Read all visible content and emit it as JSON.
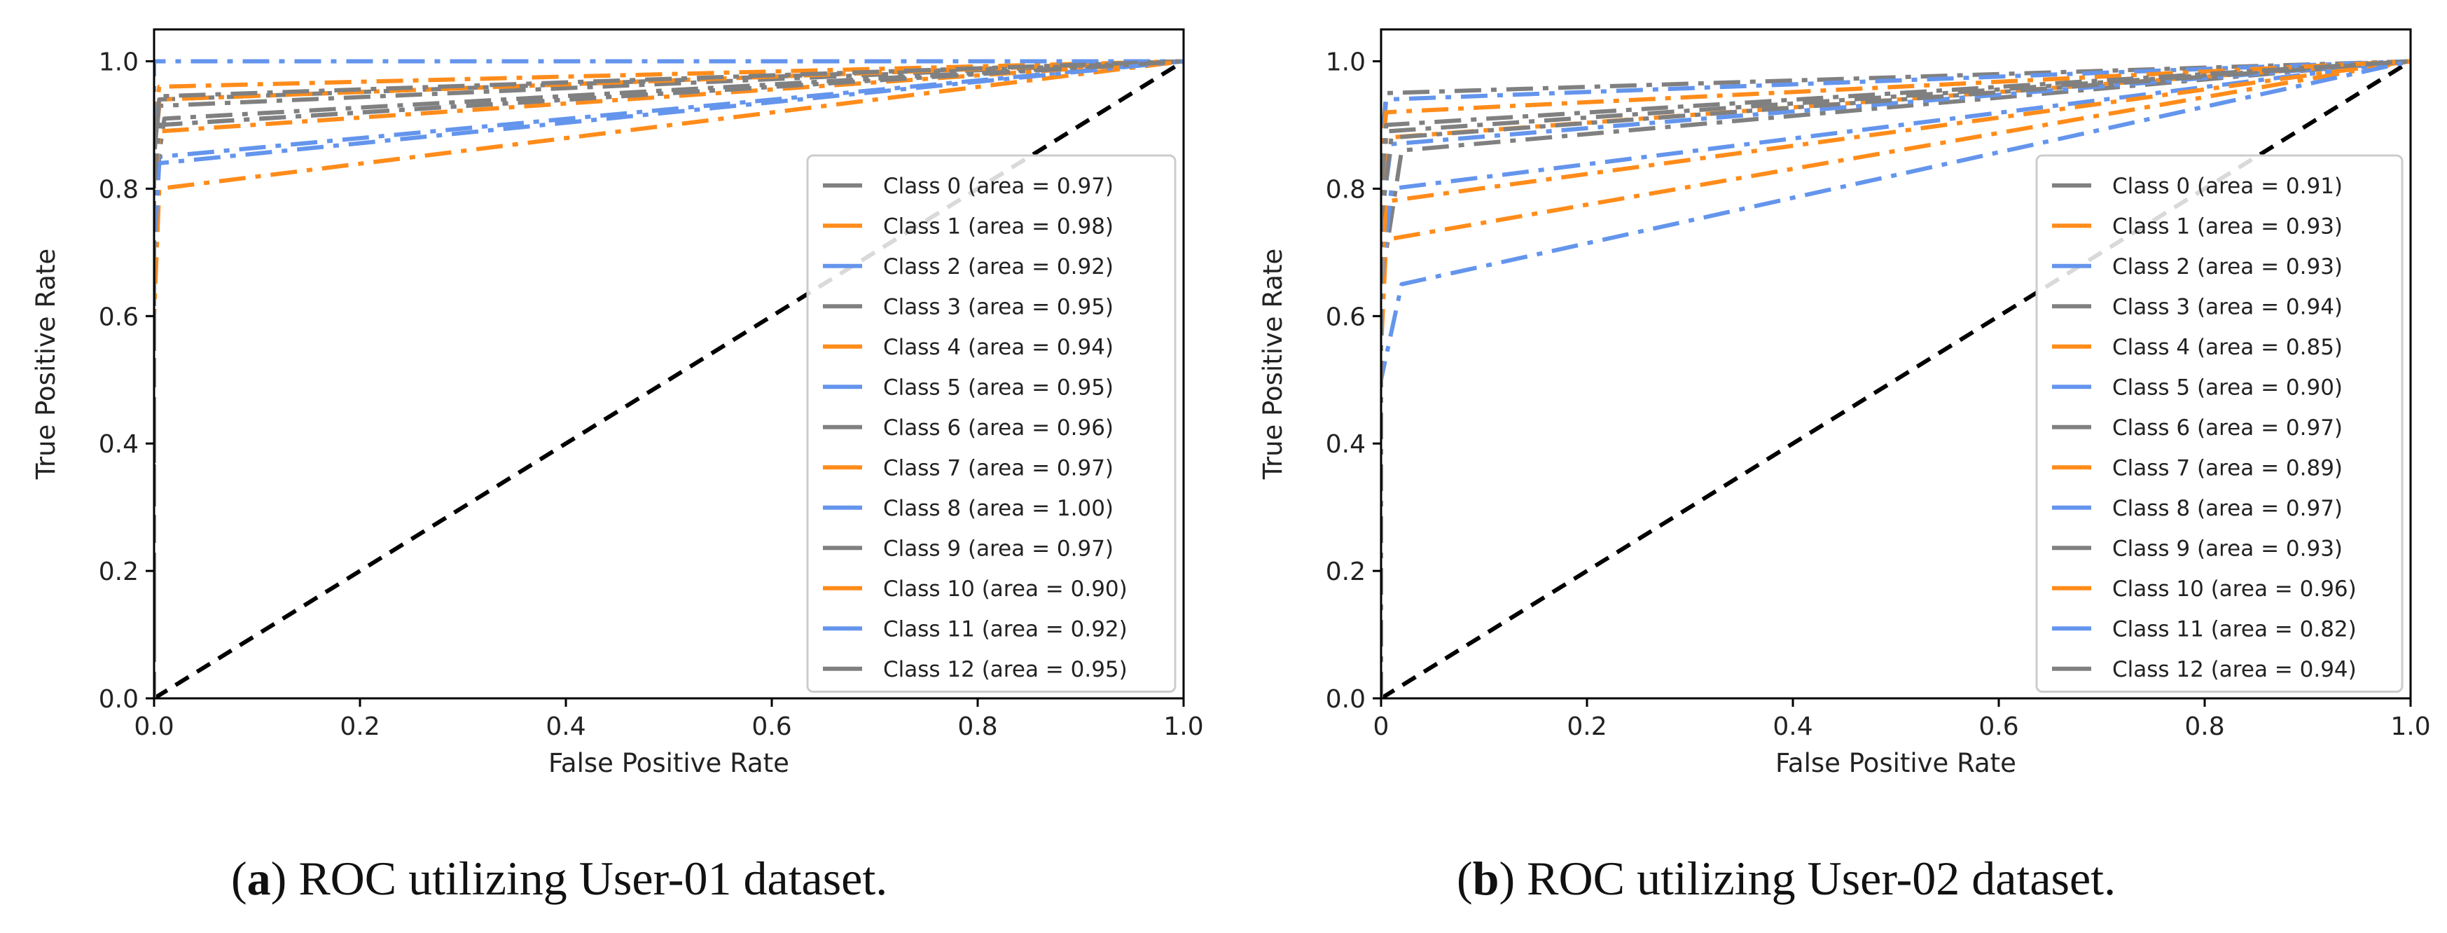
{
  "chart_data": [
    {
      "type": "line",
      "panel_label": "a",
      "caption": "ROC utilizing User-01 dataset.",
      "xlabel": "False Positive Rate",
      "ylabel": "True Positive Rate",
      "xlim": [
        0,
        1.0
      ],
      "ylim": [
        0,
        1.05
      ],
      "xticks": [
        0.0,
        0.2,
        0.4,
        0.6,
        0.8,
        1.0
      ],
      "yticks": [
        0.0,
        0.2,
        0.4,
        0.6,
        0.8,
        1.0
      ],
      "xtick_labels": [
        "0.0",
        "0.2",
        "0.4",
        "0.6",
        "0.8",
        "1.0"
      ],
      "ytick_labels": [
        "0.0",
        "0.2",
        "0.4",
        "0.6",
        "0.8",
        "1.0"
      ],
      "legend_position": "center-right",
      "diagonal": {
        "x": [
          0,
          1
        ],
        "y": [
          0,
          1
        ],
        "style": "dashed",
        "color": "#000000"
      },
      "series": [
        {
          "name": "Class 0 (area = 0.97)",
          "color": "#808080",
          "style": "dashed",
          "x": [
            0,
            0,
            0.005,
            1
          ],
          "y": [
            0,
            0.85,
            0.94,
            1
          ]
        },
        {
          "name": "Class 1 (area = 0.98)",
          "color": "#ff8c1a",
          "style": "dashdot",
          "x": [
            0,
            0,
            0.005,
            1
          ],
          "y": [
            0,
            0.9,
            0.96,
            1
          ]
        },
        {
          "name": "Class 2 (area = 0.92)",
          "color": "#6495ed",
          "style": "dashdot",
          "x": [
            0,
            0,
            0.005,
            1
          ],
          "y": [
            0,
            0.7,
            0.85,
            1
          ]
        },
        {
          "name": "Class 3 (area = 0.95)",
          "color": "#808080",
          "style": "dashdot",
          "x": [
            0,
            0,
            0.01,
            1
          ],
          "y": [
            0,
            0.8,
            0.91,
            1
          ]
        },
        {
          "name": "Class 4 (area = 0.94)",
          "color": "#ff8c1a",
          "style": "dashdot",
          "x": [
            0,
            0,
            0.005,
            1
          ],
          "y": [
            0,
            0.75,
            0.89,
            1
          ]
        },
        {
          "name": "Class 5 (area = 0.95)",
          "color": "#6495ed",
          "style": "dashdot",
          "x": [
            0,
            0,
            0.005,
            1
          ],
          "y": [
            0,
            0.8,
            0.9,
            1
          ]
        },
        {
          "name": "Class 6 (area = 0.96)",
          "color": "#808080",
          "style": "dashdot",
          "x": [
            0,
            0,
            0.005,
            1
          ],
          "y": [
            0,
            0.85,
            0.93,
            1
          ]
        },
        {
          "name": "Class 7 (area = 0.97)",
          "color": "#ff8c1a",
          "style": "dashdot",
          "x": [
            0,
            0,
            0.005,
            1
          ],
          "y": [
            0,
            0.85,
            0.94,
            1
          ]
        },
        {
          "name": "Class 8 (area = 1.00)",
          "color": "#6495ed",
          "style": "dashdot",
          "x": [
            0,
            0,
            1
          ],
          "y": [
            0,
            1.0,
            1.0
          ]
        },
        {
          "name": "Class 9 (area = 0.97)",
          "color": "#808080",
          "style": "dashdot",
          "x": [
            0,
            0,
            0.005,
            1
          ],
          "y": [
            0,
            0.85,
            0.945,
            1
          ]
        },
        {
          "name": "Class 10 (area = 0.90)",
          "color": "#ff8c1a",
          "style": "dashdot",
          "x": [
            0,
            0,
            0.005,
            1
          ],
          "y": [
            0,
            0.6,
            0.8,
            1
          ]
        },
        {
          "name": "Class 11 (area = 0.92)",
          "color": "#6495ed",
          "style": "dashdot",
          "x": [
            0,
            0,
            0.005,
            1
          ],
          "y": [
            0,
            0.7,
            0.84,
            1
          ]
        },
        {
          "name": "Class 12 (area = 0.95)",
          "color": "#808080",
          "style": "dashdot",
          "x": [
            0,
            0,
            0.005,
            1
          ],
          "y": [
            0,
            0.8,
            0.9,
            1
          ]
        }
      ]
    },
    {
      "type": "line",
      "panel_label": "b",
      "caption": "ROC utilizing User-02 dataset.",
      "xlabel": "False Positive Rate",
      "ylabel": "True Positive Rate",
      "xlim": [
        0,
        1.0
      ],
      "ylim": [
        0,
        1.05
      ],
      "xticks": [
        0.0,
        0.2,
        0.4,
        0.6,
        0.8,
        1.0
      ],
      "yticks": [
        0.0,
        0.2,
        0.4,
        0.6,
        0.8,
        1.0
      ],
      "xtick_labels": [
        "0",
        "0.2",
        "0.4",
        "0.6",
        "0.8",
        "1.0"
      ],
      "ytick_labels": [
        "0.0",
        "0.2",
        "0.4",
        "0.6",
        "0.8",
        "1.0"
      ],
      "legend_position": "center-right",
      "diagonal": {
        "x": [
          0,
          1
        ],
        "y": [
          0,
          1
        ],
        "style": "dashed",
        "color": "#000000"
      },
      "series": [
        {
          "name": "Class 0 (area = 0.91)",
          "color": "#808080",
          "style": "dashdot",
          "x": [
            0,
            0,
            0.02,
            1
          ],
          "y": [
            0,
            0.65,
            0.86,
            1
          ]
        },
        {
          "name": "Class 1 (area = 0.93)",
          "color": "#ff8c1a",
          "style": "dashdot",
          "x": [
            0,
            0,
            0.005,
            1
          ],
          "y": [
            0,
            0.75,
            0.88,
            1
          ]
        },
        {
          "name": "Class 2 (area = 0.93)",
          "color": "#6495ed",
          "style": "dashdot",
          "x": [
            0,
            0,
            0.01,
            1
          ],
          "y": [
            0,
            0.75,
            0.87,
            1
          ]
        },
        {
          "name": "Class 3 (area = 0.94)",
          "color": "#808080",
          "style": "dashdot",
          "x": [
            0,
            0,
            0.005,
            1
          ],
          "y": [
            0,
            0.8,
            0.89,
            1
          ]
        },
        {
          "name": "Class 4 (area = 0.85)",
          "color": "#ff8c1a",
          "style": "dashdot",
          "x": [
            0,
            0,
            0.005,
            1
          ],
          "y": [
            0,
            0.55,
            0.72,
            1
          ]
        },
        {
          "name": "Class 5 (area = 0.90)",
          "color": "#6495ed",
          "style": "dashdot",
          "x": [
            0,
            0,
            0.01,
            1
          ],
          "y": [
            0,
            0.65,
            0.8,
            1
          ]
        },
        {
          "name": "Class 6 (area = 0.97)",
          "color": "#808080",
          "style": "dashdot",
          "x": [
            0,
            0,
            0.005,
            1
          ],
          "y": [
            0,
            0.85,
            0.95,
            1
          ]
        },
        {
          "name": "Class 7 (area = 0.89)",
          "color": "#ff8c1a",
          "style": "dashdot",
          "x": [
            0,
            0,
            0.005,
            1
          ],
          "y": [
            0,
            0.65,
            0.78,
            1
          ]
        },
        {
          "name": "Class 8 (area = 0.97)",
          "color": "#6495ed",
          "style": "dashdot",
          "x": [
            0,
            0,
            0.005,
            1
          ],
          "y": [
            0,
            0.85,
            0.94,
            1
          ]
        },
        {
          "name": "Class 9 (area = 0.93)",
          "color": "#808080",
          "style": "dashdot",
          "x": [
            0,
            0,
            0.01,
            1
          ],
          "y": [
            0,
            0.75,
            0.88,
            1
          ]
        },
        {
          "name": "Class 10 (area = 0.96)",
          "color": "#ff8c1a",
          "style": "dashdot",
          "x": [
            0,
            0,
            0.005,
            1
          ],
          "y": [
            0,
            0.85,
            0.92,
            1
          ]
        },
        {
          "name": "Class 11 (area = 0.82)",
          "color": "#6495ed",
          "style": "dashdot",
          "x": [
            0,
            0,
            0.02,
            1
          ],
          "y": [
            0,
            0.5,
            0.65,
            1
          ]
        },
        {
          "name": "Class 12 (area = 0.94)",
          "color": "#808080",
          "style": "dashdot",
          "x": [
            0,
            0,
            0.005,
            1
          ],
          "y": [
            0,
            0.8,
            0.9,
            1
          ]
        }
      ]
    }
  ]
}
